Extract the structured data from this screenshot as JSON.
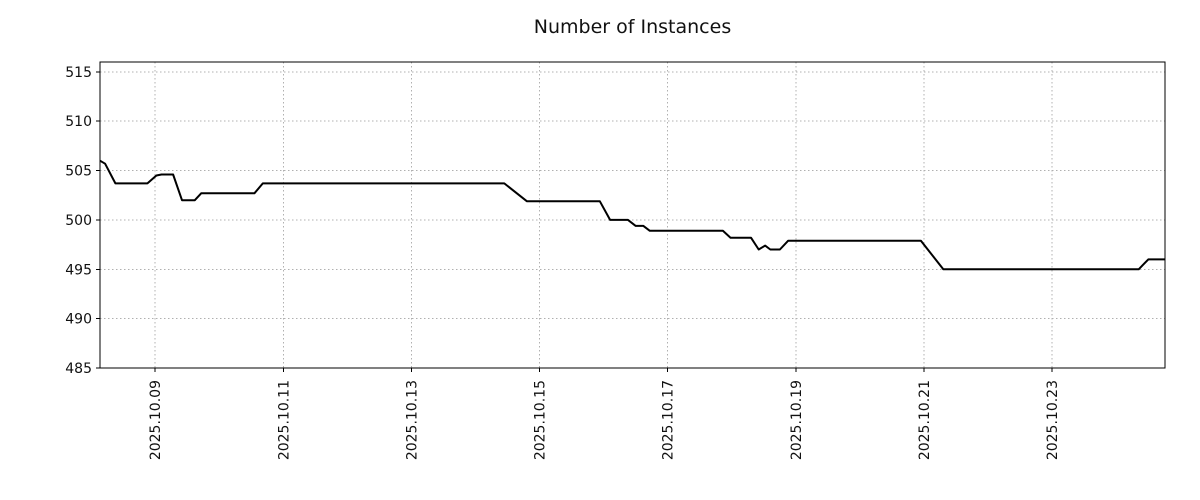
{
  "title": "Number of Instances",
  "colors": {
    "line": "#000000",
    "grid": "#b0b0b0",
    "axis": "#000000",
    "tick_label": "#111111",
    "background": "#ffffff"
  },
  "chart_data": {
    "type": "line",
    "title": "Number of Instances",
    "xlabel": "",
    "ylabel": "",
    "legend": false,
    "grid": true,
    "grid_style": "dotted",
    "x_axis_kind": "date",
    "xlim": [
      8.14,
      24.76
    ],
    "ylim": [
      485,
      516
    ],
    "y_ticks": [
      485,
      490,
      495,
      500,
      505,
      510,
      515
    ],
    "x_ticks": [
      {
        "value": 9,
        "label": "2025.10.09"
      },
      {
        "value": 11,
        "label": "2025.10.11"
      },
      {
        "value": 13,
        "label": "2025.10.13"
      },
      {
        "value": 15,
        "label": "2025.10.15"
      },
      {
        "value": 17,
        "label": "2025.10.17"
      },
      {
        "value": 19,
        "label": "2025.10.19"
      },
      {
        "value": 21,
        "label": "2025.10.21"
      },
      {
        "value": 23,
        "label": "2025.10.23"
      }
    ],
    "x_tick_label_rotation": 90,
    "series": [
      {
        "name": "Number of Instances",
        "color": "#000000",
        "points": [
          [
            8.14,
            506.0
          ],
          [
            8.22,
            505.7
          ],
          [
            8.38,
            503.7
          ],
          [
            8.88,
            503.7
          ],
          [
            9.02,
            504.5
          ],
          [
            9.1,
            504.6
          ],
          [
            9.28,
            504.6
          ],
          [
            9.42,
            502.0
          ],
          [
            9.62,
            502.0
          ],
          [
            9.72,
            502.7
          ],
          [
            10.55,
            502.7
          ],
          [
            10.68,
            503.7
          ],
          [
            14.45,
            503.7
          ],
          [
            14.8,
            501.9
          ],
          [
            15.94,
            501.9
          ],
          [
            16.1,
            500.0
          ],
          [
            16.38,
            500.0
          ],
          [
            16.5,
            499.4
          ],
          [
            16.62,
            499.4
          ],
          [
            16.72,
            498.9
          ],
          [
            17.86,
            498.9
          ],
          [
            17.98,
            498.2
          ],
          [
            18.3,
            498.2
          ],
          [
            18.42,
            497.0
          ],
          [
            18.52,
            497.4
          ],
          [
            18.6,
            497.0
          ],
          [
            18.75,
            497.0
          ],
          [
            18.88,
            497.9
          ],
          [
            20.95,
            497.9
          ],
          [
            21.3,
            495.0
          ],
          [
            24.35,
            495.0
          ],
          [
            24.5,
            496.0
          ],
          [
            24.76,
            496.0
          ]
        ]
      }
    ]
  }
}
